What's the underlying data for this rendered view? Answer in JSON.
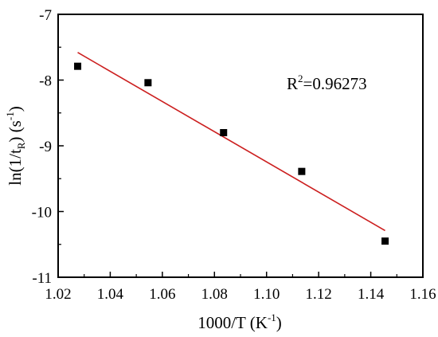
{
  "chart_data": {
    "type": "scatter",
    "title": "",
    "xlabel": {
      "main": "1000/T",
      "unit_base": "K",
      "unit_sup": "-1"
    },
    "ylabel": {
      "main": "ln(1/t",
      "sub": "R",
      "close": ")",
      "unit_base": "s",
      "unit_sup": "-1"
    },
    "xlim": [
      1.02,
      1.16
    ],
    "ylim": [
      -11,
      -7
    ],
    "x_ticks": [
      "1.02",
      "1.04",
      "1.06",
      "1.08",
      "1.10",
      "1.12",
      "1.14",
      "1.16"
    ],
    "y_ticks": [
      "-7",
      "-8",
      "-9",
      "-10",
      "-11"
    ],
    "grid": false,
    "series": [
      {
        "marker": "square",
        "color": "#000000",
        "points": [
          {
            "x": 1.0275,
            "y": -7.79
          },
          {
            "x": 1.0545,
            "y": -8.04
          },
          {
            "x": 1.0835,
            "y": -8.8
          },
          {
            "x": 1.1135,
            "y": -9.39
          },
          {
            "x": 1.1455,
            "y": -10.45
          }
        ]
      }
    ],
    "fit_line": {
      "color": "#cc1f1f",
      "x": [
        1.0275,
        1.1455
      ],
      "y": [
        -7.58,
        -10.29
      ]
    },
    "annotation": {
      "base": "R",
      "sup": "2",
      "rest": "=0.96273"
    }
  }
}
